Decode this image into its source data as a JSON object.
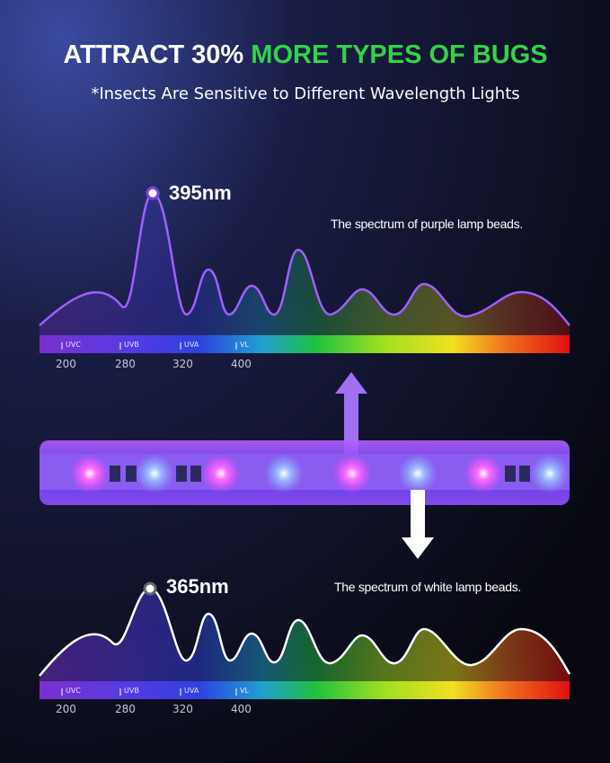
{
  "header": {
    "title_lead": "ATTRACT 30%",
    "title_highlight": "MORE TYPES OF BUGS",
    "subtitle": "*Insects Are Sensitive to Different Wavelength Lights"
  },
  "purple_spectrum": {
    "peak_label": "395nm",
    "caption": "The spectrum of purple lamp beads.",
    "bands": [
      "UVC",
      "UVB",
      "UVA",
      "VL"
    ],
    "scale": [
      "200",
      "280",
      "320",
      "400"
    ]
  },
  "white_spectrum": {
    "peak_label": "365nm",
    "caption": "The spectrum of white lamp beads.",
    "bands": [
      "UVC",
      "UVB",
      "UVA",
      "VL"
    ],
    "scale": [
      "200",
      "280",
      "320",
      "400"
    ]
  }
}
